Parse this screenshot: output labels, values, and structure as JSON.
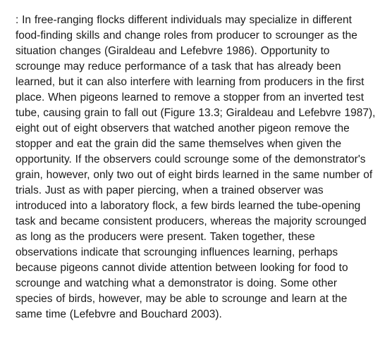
{
  "paragraph": {
    "text": ": In free-ranging flocks different individuals may specialize in different food-finding skills and change roles from producer to scrounger as the situation changes (Giraldeau and Lefebvre 1986). Opportunity to scrounge may reduce performance of a task that has already been learned, but it can also interfere with learning from producers in the first place. When pigeons learned to remove a stopper from an inverted test tube, causing grain to fall out (Figure 13.3; Giraldeau and Lefebvre 1987), eight out of eight observers that watched another pigeon remove the stopper and eat the grain did the same themselves when given the opportunity. If the observers could scrounge some of the demonstrator's grain, however, only two out of eight birds learned in the same number of trials. Just as with paper piercing, when a trained observer was introduced into a laboratory flock, a few birds learned the tube-opening task and became consistent producers, whereas the majority scrounged as long as the producers were present. Taken together, these observations indicate that scrounging influences learning, perhaps because pigeons cannot divide attention between looking for food to scrounge and watching what a demonstrator is doing. Some other species of birds, however, may be able to scrounge and learn at the same time (Lefebvre and Bouchard 2003).",
    "font_size": 15.5,
    "line_height": 1.42,
    "text_color": "#1a1a1a",
    "background_color": "#ffffff",
    "font_family": "Arial, Helvetica, sans-serif"
  }
}
